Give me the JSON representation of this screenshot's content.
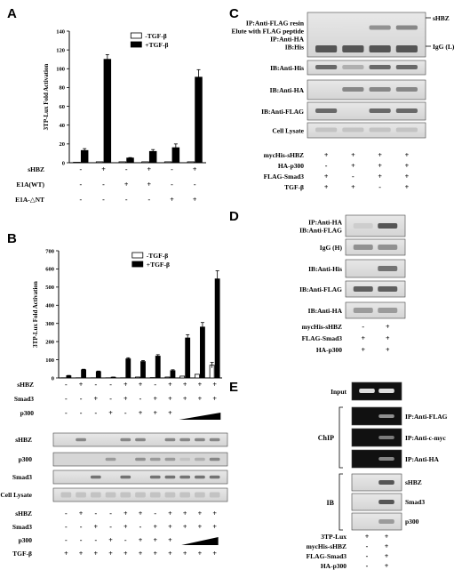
{
  "figure": {
    "panel_letters": [
      "A",
      "B",
      "C",
      "D",
      "E"
    ]
  },
  "chart_data": [
    {
      "panel": "A",
      "type": "bar",
      "ylabel": "3TP-Lux Fold Activation",
      "ylim": [
        0,
        140
      ],
      "yticks": [
        0,
        20,
        40,
        60,
        80,
        100,
        120,
        140
      ],
      "legend": [
        "-TGF-β",
        "+TGF-β"
      ],
      "series": [
        {
          "name": "-TGF-β",
          "values": [
            0.5,
            1,
            1,
            1,
            1,
            1
          ],
          "errors": [
            0,
            0,
            0,
            0,
            0,
            0
          ]
        },
        {
          "name": "+TGF-β",
          "values": [
            13,
            110,
            5,
            12,
            16,
            91
          ],
          "errors": [
            2,
            5,
            0.5,
            2,
            4,
            8
          ]
        }
      ],
      "condition_rows": [
        {
          "label": "sHBZ",
          "signs": [
            "-",
            "+",
            "-",
            "+",
            "-",
            "+"
          ]
        },
        {
          "label": "E1A(WT)",
          "signs": [
            "-",
            "-",
            "+",
            "+",
            "-",
            "-"
          ]
        },
        {
          "label": "E1A-△NT",
          "signs": [
            "-",
            "-",
            "-",
            "-",
            "+",
            "+"
          ]
        }
      ]
    },
    {
      "panel": "B",
      "type": "bar",
      "ylabel": "3TP-Lux Fold Activation",
      "ylim": [
        0,
        700
      ],
      "yticks": [
        0,
        100,
        200,
        300,
        400,
        500,
        600,
        700
      ],
      "legend": [
        "-TGF-β",
        "+TGF-β"
      ],
      "series": [
        {
          "name": "-TGF-β",
          "values": [
            1,
            1,
            1,
            1,
            1,
            5,
            2,
            5,
            10,
            20,
            70
          ],
          "errors": [
            0,
            0,
            0,
            0,
            0,
            0,
            0,
            0,
            0,
            0,
            15
          ]
        },
        {
          "name": "+TGF-β",
          "values": [
            12,
            45,
            35,
            4,
            105,
            90,
            120,
            40,
            220,
            280,
            545
          ],
          "errors": [
            2,
            3,
            3,
            1,
            6,
            6,
            8,
            5,
            18,
            25,
            45
          ]
        }
      ],
      "condition_rows": [
        {
          "label": "sHBZ",
          "signs": [
            "-",
            "+",
            "-",
            "-",
            "+",
            "+",
            "-",
            "+",
            "+",
            "+",
            "+"
          ]
        },
        {
          "label": "Smad3",
          "signs": [
            "-",
            "-",
            "+",
            "-",
            "+",
            "-",
            "+",
            "+",
            "+",
            "+",
            "+"
          ]
        },
        {
          "label": "p300",
          "signs": [
            "-",
            "-",
            "-",
            "+",
            "-",
            "+",
            "+",
            "+",
            "",
            "",
            " "
          ]
        }
      ]
    }
  ],
  "panelB_blots": [
    "sHBZ",
    "p300",
    "Smad3",
    "Cell Lysate"
  ],
  "panelB_rows2": [
    {
      "label": "sHBZ",
      "signs": [
        "-",
        "+",
        "-",
        "-",
        "+",
        "+",
        "-",
        "+",
        "+",
        "+",
        "+"
      ]
    },
    {
      "label": "Smad3",
      "signs": [
        "-",
        "-",
        "+",
        "-",
        "+",
        "-",
        "+",
        "+",
        "+",
        "+",
        "+"
      ]
    },
    {
      "label": "p300",
      "signs": [
        "-",
        "-",
        "-",
        "+",
        "-",
        "+",
        "+",
        "+",
        "",
        "",
        ""
      ]
    },
    {
      "label": "TGF-β",
      "signs": [
        "+",
        "+",
        "+",
        "+",
        "+",
        "+",
        "+",
        "+",
        "+",
        "+",
        "+"
      ]
    }
  ],
  "panelC": {
    "blots": [
      {
        "label": "IP:Anti-FLAG resin\nElute with FLAG peptide\nIP:Anti-HA\nIB:His",
        "right": [
          "sHBZ",
          "IgG (L)"
        ]
      },
      {
        "label": "IB:Anti-His"
      },
      {
        "label": "IB:Anti-HA"
      },
      {
        "label": "IB:Anti-FLAG"
      },
      {
        "label": "Cell Lysate"
      }
    ],
    "rows": [
      {
        "label": "mycHis-sHBZ",
        "signs": [
          "+",
          "+",
          "+",
          "+"
        ]
      },
      {
        "label": "HA-p300",
        "signs": [
          "-",
          "+",
          "+",
          "+"
        ]
      },
      {
        "label": "FLAG-Smad3",
        "signs": [
          "+",
          "-",
          "+",
          "+"
        ]
      },
      {
        "label": "TGF-β",
        "signs": [
          "+",
          "+",
          "-",
          "+"
        ]
      }
    ]
  },
  "panelD": {
    "blots": [
      "IP:Anti-HA\nIB:Anti-FLAG",
      "IgG (H)",
      "IB:Anti-His",
      "IB:Anti-FLAG",
      "IB:Anti-HA"
    ],
    "rows": [
      {
        "label": "mycHis-sHBZ",
        "signs": [
          "-",
          "+"
        ]
      },
      {
        "label": "FLAG-Smad3",
        "signs": [
          "+",
          "+"
        ]
      },
      {
        "label": "HA-p300",
        "signs": [
          "+",
          "+"
        ]
      }
    ]
  },
  "panelE": {
    "input_label": "Input",
    "chip_label": "ChIP",
    "ib_label": "IB",
    "chip_rows": [
      "IP:Anti-FLAG",
      "IP:Anti-c-myc",
      "IP:Anti-HA"
    ],
    "ib_rows": [
      "sHBZ",
      "Smad3",
      "p300"
    ],
    "rows": [
      {
        "label": "3TP-Lux",
        "signs": [
          "+",
          "+"
        ]
      },
      {
        "label": "mycHis-sHBZ",
        "signs": [
          "-",
          "+"
        ]
      },
      {
        "label": "FLAG-Smad3",
        "signs": [
          "-",
          "+"
        ]
      },
      {
        "label": "HA-p300",
        "signs": [
          "-",
          "+"
        ]
      }
    ]
  }
}
